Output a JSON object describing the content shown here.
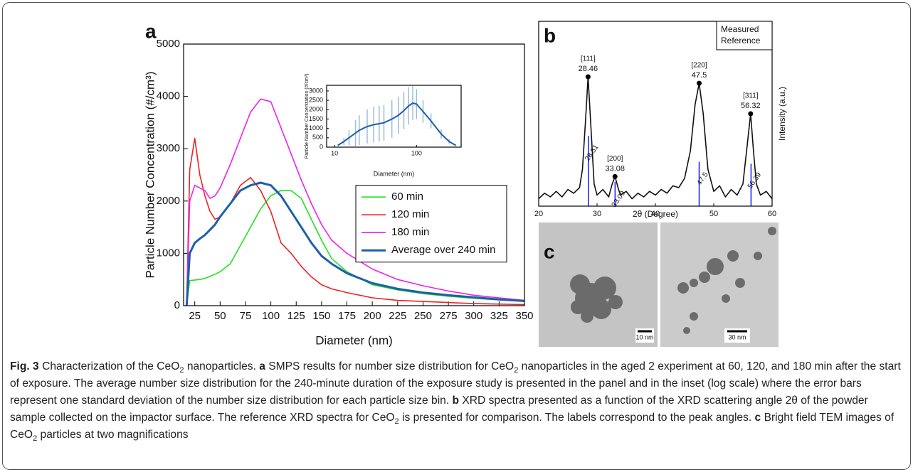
{
  "panels": {
    "a": "a",
    "b": "b",
    "c": "c"
  },
  "chart_data": [
    {
      "type": "line",
      "xlabel": "Diameter (nm)",
      "ylabel": "Particle Number Concentration (#/cm³)",
      "x": [
        17,
        20,
        25,
        30,
        35,
        40,
        45,
        50,
        60,
        70,
        80,
        90,
        100,
        110,
        120,
        130,
        140,
        150,
        160,
        175,
        200,
        225,
        250,
        275,
        300,
        325,
        350
      ],
      "series": [
        {
          "name": "60 min",
          "color": "#22e022",
          "values": [
            0,
            480,
            490,
            500,
            520,
            560,
            600,
            650,
            800,
            1150,
            1500,
            1850,
            2100,
            2200,
            2200,
            2050,
            1650,
            1250,
            900,
            650,
            400,
            300,
            230,
            180,
            140,
            110,
            80
          ]
        },
        {
          "name": "120 min",
          "color": "#ee2222",
          "values": [
            0,
            2600,
            3200,
            2500,
            2100,
            1800,
            1650,
            1700,
            1950,
            2300,
            2450,
            2200,
            1800,
            1200,
            1000,
            750,
            550,
            400,
            320,
            250,
            150,
            100,
            80,
            60,
            40,
            30,
            20
          ]
        },
        {
          "name": "180 min",
          "color": "#ee22ee",
          "values": [
            0,
            2000,
            2300,
            2250,
            2200,
            2050,
            2100,
            2250,
            2700,
            3200,
            3700,
            3950,
            3900,
            3400,
            2900,
            2400,
            1950,
            1550,
            1250,
            1000,
            700,
            500,
            380,
            280,
            200,
            150,
            100
          ]
        },
        {
          "name": "Average over 240 min",
          "color": "#1f5fa8",
          "width": 3,
          "values": [
            0,
            1000,
            1200,
            1280,
            1350,
            1450,
            1550,
            1700,
            1950,
            2200,
            2300,
            2350,
            2300,
            2100,
            1800,
            1500,
            1200,
            950,
            800,
            620,
            430,
            320,
            250,
            200,
            160,
            120,
            90
          ]
        }
      ],
      "xlim": [
        14,
        350
      ],
      "xticks": [
        25,
        50,
        75,
        100,
        125,
        150,
        175,
        200,
        225,
        250,
        275,
        300,
        325,
        350
      ],
      "ylim": [
        0,
        5000
      ],
      "yticks": [
        0,
        1000,
        2000,
        3000,
        4000,
        5000
      ],
      "legend": "center-right"
    },
    {
      "type": "line",
      "xlog": true,
      "xlabel": "Diameter (nm)",
      "ylabel": "Particle Number Concentration (#/cm³)",
      "x": [
        11,
        13,
        15,
        18,
        20,
        25,
        30,
        35,
        40,
        50,
        60,
        70,
        80,
        90,
        100,
        120,
        150,
        200,
        250,
        300
      ],
      "series": [
        {
          "color": "#1f5fa8",
          "error_color": "#9dbbdd",
          "width": 2,
          "values": [
            100,
            300,
            500,
            750,
            900,
            1100,
            1200,
            1250,
            1300,
            1500,
            1700,
            1950,
            2200,
            2350,
            2300,
            1900,
            1400,
            700,
            300,
            100
          ],
          "errors": [
            50,
            200,
            400,
            700,
            800,
            900,
            950,
            950,
            950,
            1000,
            1000,
            1000,
            1000,
            900,
            800,
            600,
            400,
            250,
            120,
            50
          ]
        }
      ],
      "xlim": [
        8,
        350
      ],
      "xticks": [
        10,
        100
      ],
      "ylim": [
        0,
        3300
      ],
      "yticks": [
        0,
        500,
        1000,
        1500,
        2000,
        2500,
        3000
      ]
    },
    {
      "type": "spectrum",
      "xlabel": "2θ (Degree)",
      "ylabel": "Intensity (a.u.)",
      "series": [
        {
          "name": "Measured",
          "color": "#111111",
          "x": [
            20,
            21,
            22,
            23,
            24,
            25,
            26,
            27,
            27.5,
            28,
            28.46,
            29,
            29.5,
            30,
            31,
            32,
            32.6,
            33.08,
            33.6,
            34,
            35,
            36,
            37,
            38,
            39,
            40,
            41,
            42,
            43,
            44,
            45,
            46,
            46.8,
            47.5,
            48.2,
            49,
            50,
            51,
            52,
            53,
            54,
            55,
            55.8,
            56.32,
            56.8,
            57.3,
            58,
            59,
            60
          ],
          "values": [
            4,
            7,
            5,
            8,
            5,
            9,
            7,
            10,
            20,
            45,
            70,
            40,
            12,
            6,
            9,
            5,
            12,
            16,
            10,
            6,
            8,
            4,
            7,
            5,
            8,
            6,
            9,
            7,
            11,
            10,
            15,
            30,
            55,
            66.5,
            50,
            20,
            8,
            11,
            5,
            9,
            6,
            12,
            35,
            50,
            30,
            12,
            6,
            8,
            4
          ]
        },
        {
          "name": "Reference",
          "color": "#1a1aff",
          "stem": true,
          "x": [
            28.51,
            33.09,
            47.5,
            56.39
          ],
          "values": [
            38,
            13,
            24,
            23
          ]
        }
      ],
      "peaks": [
        {
          "hkl": "[111]",
          "x": 28.46,
          "y": 70
        },
        {
          "hkl": "[200]",
          "x": 33.08,
          "y": 16
        },
        {
          "hkl": "[220]",
          "x": 47.5,
          "y": 66.5
        },
        {
          "hkl": "[311]",
          "x": 56.32,
          "y": 50
        }
      ],
      "xlim": [
        20,
        60
      ],
      "xticks": [
        20,
        30,
        40,
        50,
        60
      ],
      "ylim": [
        0,
        100
      ],
      "legend": "upper-right"
    }
  ],
  "tem": {
    "scale_bars": [
      "10 nm",
      "30 nm"
    ]
  },
  "caption": [
    "Fig. 3",
    " Characterization of the CeO",
    "2",
    " nanoparticles. ",
    "a",
    " SMPS results for number size distribution for CeO",
    "2",
    " nanoparticles in the aged 2 experiment at 60, 120, and 180 min after the start of exposure. The average number size distribution for the 240-minute duration of the exposure study is presented in the panel and in the inset (log scale) where the error bars represent one standard deviation of the number size distribution for each particle size bin. ",
    "b",
    " XRD spectra presented as a function of the XRD scattering angle 2θ of the powder sample collected on the impactor surface. The reference XRD spectra for CeO",
    "2",
    " is presented for comparison. The labels correspond to the peak angles. ",
    "c",
    " Bright field TEM images of CeO",
    "2",
    " particles at two magnifications"
  ]
}
